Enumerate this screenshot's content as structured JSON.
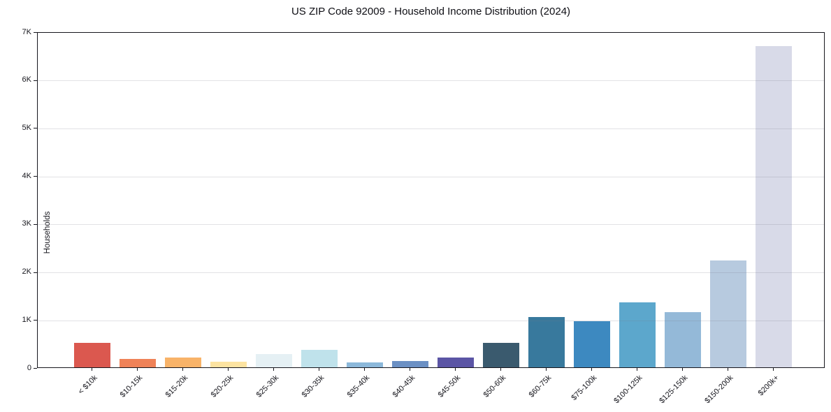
{
  "title": "US ZIP Code 92009 - Household Income Distribution (2024)",
  "chart_data": {
    "type": "bar",
    "title": "US ZIP Code 92009 - Household Income Distribution (2024)",
    "xlabel": "",
    "ylabel": "Households",
    "categories": [
      "< $10k",
      "$10-15k",
      "$15-20k",
      "$20-25k",
      "$25-30k",
      "$30-35k",
      "$35-40k",
      "$40-45k",
      "$45-50k",
      "$50-60k",
      "$60-75k",
      "$75-100k",
      "$100-125k",
      "$125-150k",
      "$150-200k",
      "$200k+"
    ],
    "values": [
      510,
      175,
      205,
      115,
      280,
      360,
      105,
      135,
      210,
      510,
      1045,
      965,
      1355,
      1150,
      2230,
      6690
    ],
    "bar_colors": [
      "#db584f",
      "#ef8258",
      "#f8b369",
      "#fce3a1",
      "#e5f0f4",
      "#bfe2eb",
      "#8cb8da",
      "#6b90c4",
      "#5b55a5",
      "#3a5a6e",
      "#38799d",
      "#3d89c0",
      "#5ca7cc",
      "#94b9d8",
      "#b7cadf",
      "#d8dae8"
    ],
    "ylim": [
      0,
      7000
    ],
    "ytick_values": [
      0,
      1000,
      2000,
      3000,
      4000,
      5000,
      6000,
      7000
    ],
    "ytick_labels": [
      "0",
      "1K",
      "2K",
      "3K",
      "4K",
      "5K",
      "6K",
      "7K"
    ],
    "grid": "horizontal",
    "legend": "none",
    "frame_color": "#16161d",
    "grid_color": "#e6e6e8",
    "background_color": "#ffffff"
  }
}
